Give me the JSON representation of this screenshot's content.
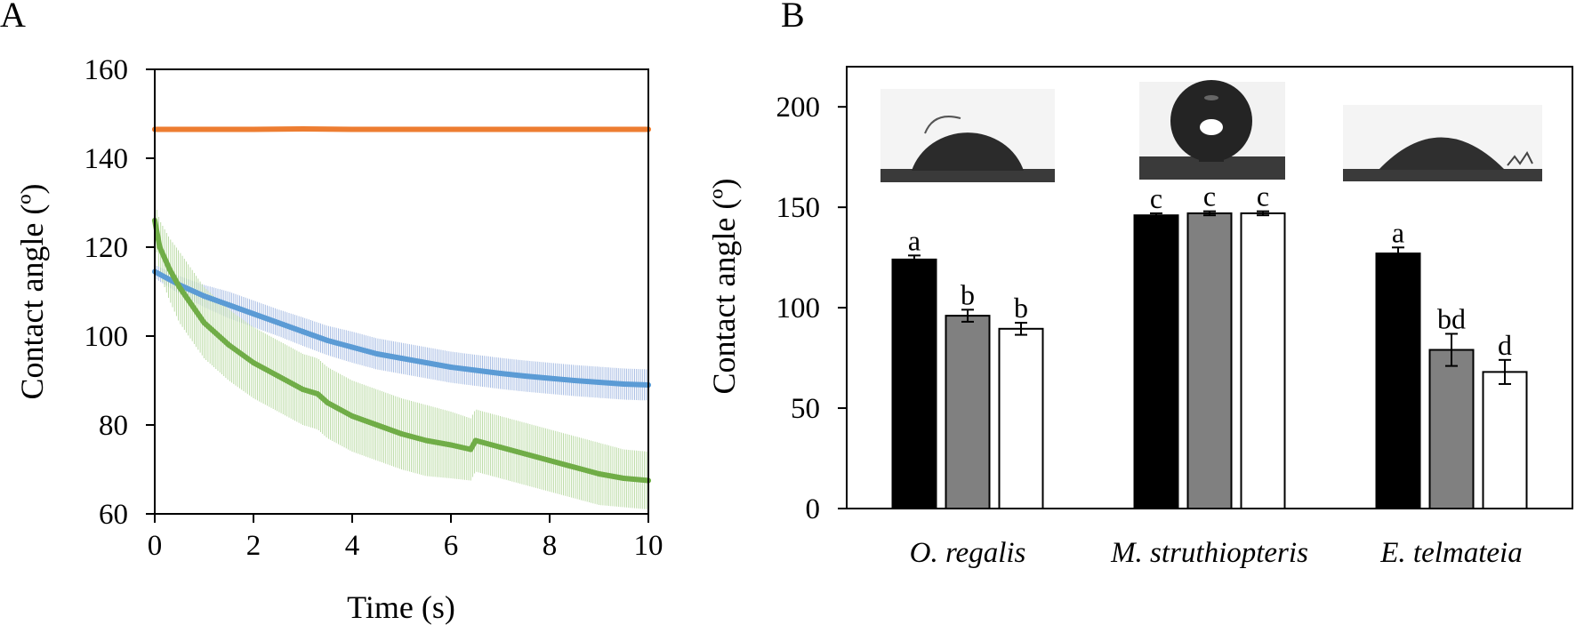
{
  "chart_data": [
    {
      "panel": "A",
      "type": "line",
      "title": "",
      "xlabel": "Time (s)",
      "ylabel": "Contact angle (º)",
      "xlim": [
        0,
        10
      ],
      "ylim": [
        60,
        160
      ],
      "xticks": [
        0,
        2,
        4,
        6,
        8,
        10
      ],
      "yticks": [
        60,
        80,
        100,
        120,
        140,
        160
      ],
      "grid": false,
      "series": [
        {
          "name": "orange",
          "color": "#ED7D31",
          "x": [
            0,
            1,
            2,
            3,
            4,
            5,
            6,
            7,
            8,
            9,
            10
          ],
          "y": [
            146.5,
            146.5,
            146.5,
            146.6,
            146.5,
            146.5,
            146.5,
            146.5,
            146.5,
            146.5,
            146.5
          ],
          "err": [
            0.5,
            0.5,
            0.5,
            0.5,
            0.5,
            0.5,
            0.5,
            0.5,
            0.5,
            0.5,
            0.5
          ]
        },
        {
          "name": "blue",
          "color": "#5B9BD5",
          "x": [
            0,
            0.5,
            1,
            1.5,
            2,
            2.5,
            3,
            3.5,
            4,
            4.5,
            5,
            5.5,
            6,
            6.5,
            7,
            7.5,
            8,
            8.5,
            9,
            9.5,
            10
          ],
          "y": [
            114.5,
            111.5,
            109,
            107,
            105,
            103,
            101,
            99,
            97.5,
            96,
            95,
            94,
            93,
            92.3,
            91.6,
            91,
            90.5,
            90,
            89.6,
            89.2,
            89
          ],
          "err": [
            1.5,
            2,
            2.5,
            3,
            3,
            3,
            3.2,
            3.3,
            3.5,
            3.5,
            3.5,
            3.5,
            3.5,
            3.5,
            3.5,
            3.5,
            3.5,
            3.5,
            3.5,
            3.5,
            3.5
          ]
        },
        {
          "name": "green",
          "color": "#70AD47",
          "x": [
            0,
            0.1,
            0.3,
            0.5,
            0.75,
            1,
            1.5,
            2,
            2.5,
            3,
            3.3,
            3.5,
            4,
            4.5,
            5,
            5.5,
            6,
            6.4,
            6.5,
            7,
            7.5,
            8,
            8.5,
            9,
            9.5,
            10
          ],
          "y": [
            126,
            120,
            115,
            111,
            107,
            103,
            98,
            94,
            91,
            88,
            87,
            85,
            82,
            80,
            78,
            76.5,
            75.5,
            74.5,
            76.5,
            75,
            73.5,
            72,
            70.5,
            69,
            68,
            67.5
          ],
          "err": [
            4,
            6,
            7,
            8,
            8,
            8,
            8,
            8,
            8,
            8,
            8,
            8,
            8,
            8,
            8,
            8,
            7.5,
            7,
            7,
            7,
            7,
            7,
            7,
            7,
            6.5,
            6.5
          ]
        }
      ]
    },
    {
      "panel": "B",
      "type": "bar",
      "title": "",
      "xlabel": "",
      "ylabel": "Contact angle (º)",
      "ylim": [
        0,
        220
      ],
      "yticks": [
        0,
        50,
        100,
        150,
        200
      ],
      "grid": false,
      "categories": [
        "O. regalis",
        "M. struthiopteris",
        "E. telmateia"
      ],
      "series": [
        {
          "name": "black",
          "color": "#000000",
          "values": [
            124,
            146,
            127
          ],
          "err": [
            2,
            1,
            3
          ],
          "letters": [
            "a",
            "c",
            "a"
          ]
        },
        {
          "name": "grey",
          "color": "#808080",
          "values": [
            96,
            147,
            79
          ],
          "err": [
            3,
            1,
            8
          ],
          "letters": [
            "b",
            "c",
            "bd"
          ]
        },
        {
          "name": "white",
          "color": "#FFFFFF",
          "values": [
            89.5,
            147,
            68
          ],
          "err": [
            3,
            1,
            6
          ],
          "letters": [
            "b",
            "c",
            "d"
          ]
        }
      ]
    }
  ]
}
